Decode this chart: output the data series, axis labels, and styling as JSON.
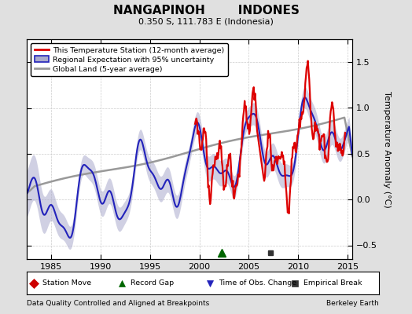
{
  "title": "NANGAPINOH        INDONES",
  "subtitle": "0.350 S, 111.783 E (Indonesia)",
  "ylabel": "Temperature Anomaly (°C)",
  "xlabel_left": "Data Quality Controlled and Aligned at Breakpoints",
  "xlabel_right": "Berkeley Earth",
  "ylim": [
    -0.65,
    1.75
  ],
  "xlim": [
    1982.5,
    2015.5
  ],
  "yticks": [
    -0.5,
    0,
    0.5,
    1,
    1.5
  ],
  "xticks": [
    1985,
    1990,
    1995,
    2000,
    2005,
    2010,
    2015
  ],
  "bg_color": "#e0e0e0",
  "plot_bg_color": "#ffffff",
  "grid_color": "#cccccc",
  "legend_entries": [
    "This Temperature Station (12-month average)",
    "Regional Expectation with 95% uncertainty",
    "Global Land (5-year average)"
  ],
  "red_color": "#dd0000",
  "blue_color": "#2222bb",
  "blue_fill_color": "#aaaacc",
  "gray_color": "#999999",
  "station_move_color": "#cc0000",
  "record_gap_color": "#006600",
  "time_obs_color": "#2222bb",
  "empirical_break_color": "#333333",
  "green_triangle_x": 2002.3,
  "black_square_x": 2007.2,
  "bottom_icons": [
    {
      "marker": "D",
      "color": "#cc0000",
      "label": "Station Move"
    },
    {
      "marker": "^",
      "color": "#006600",
      "label": "Record Gap"
    },
    {
      "marker": "v",
      "color": "#2222bb",
      "label": "Time of Obs. Change"
    },
    {
      "marker": "s",
      "color": "#333333",
      "label": "Empirical Break"
    }
  ]
}
